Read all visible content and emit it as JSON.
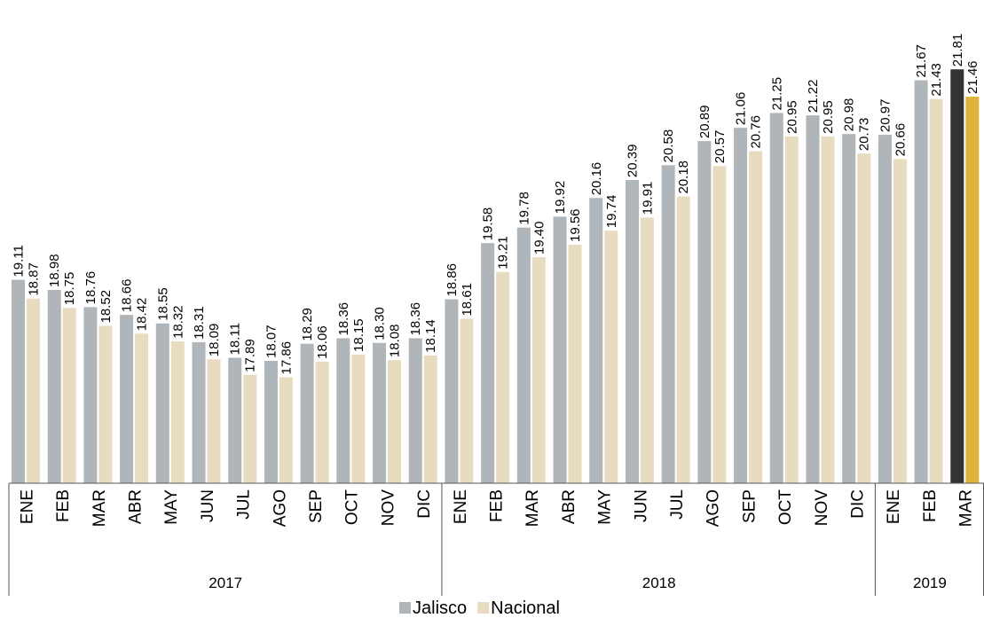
{
  "chart_data": {
    "type": "bar",
    "categories": [
      "ENE",
      "FEB",
      "MAR",
      "ABR",
      "MAY",
      "JUN",
      "JUL",
      "AGO",
      "SEP",
      "OCT",
      "NOV",
      "DIC",
      "ENE",
      "FEB",
      "MAR",
      "ABR",
      "MAY",
      "JUN",
      "JUL",
      "AGO",
      "SEP",
      "OCT",
      "NOV",
      "DIC",
      "ENE",
      "FEB",
      "MAR"
    ],
    "groups": [
      {
        "label": "2017",
        "span": 12
      },
      {
        "label": "2018",
        "span": 12
      },
      {
        "label": "2019",
        "span": 3
      }
    ],
    "series": [
      {
        "name": "Jalisco",
        "color": "#b0b5ba",
        "colors": [
          "#b0b5ba",
          "#b0b5ba",
          "#b0b5ba",
          "#b0b5ba",
          "#b0b5ba",
          "#b0b5ba",
          "#b0b5ba",
          "#b0b5ba",
          "#b0b5ba",
          "#b0b5ba",
          "#b0b5ba",
          "#b0b5ba",
          "#b0b5ba",
          "#b0b5ba",
          "#b0b5ba",
          "#b0b5ba",
          "#b0b5ba",
          "#b0b5ba",
          "#b0b5ba",
          "#b0b5ba",
          "#b0b5ba",
          "#b0b5ba",
          "#b0b5ba",
          "#b0b5ba",
          "#b0b5ba",
          "#b0b5ba",
          "#333333"
        ],
        "values": [
          19.11,
          18.98,
          18.76,
          18.66,
          18.55,
          18.31,
          18.11,
          18.07,
          18.29,
          18.36,
          18.3,
          18.36,
          18.86,
          19.58,
          19.78,
          19.92,
          20.16,
          20.39,
          20.58,
          20.89,
          21.06,
          21.25,
          21.22,
          20.98,
          20.97,
          21.67,
          21.81
        ],
        "value_labels": [
          "19.11",
          "18.98",
          "18.76",
          "18.66",
          "18.55",
          "18.31",
          "18.11",
          "18.07",
          "18.29",
          "18.36",
          "18.30",
          "18.36",
          "18.86",
          "19.58",
          "19.78",
          "19.92",
          "20.16",
          "20.39",
          "20.58",
          "20.89",
          "21.06",
          "21.25",
          "21.22",
          "20.98",
          "20.97",
          "21.67",
          "21.81"
        ]
      },
      {
        "name": "Nacional",
        "color": "#e8dcc0",
        "colors": [
          "#e8dcc0",
          "#e8dcc0",
          "#e8dcc0",
          "#e8dcc0",
          "#e8dcc0",
          "#e8dcc0",
          "#e8dcc0",
          "#e8dcc0",
          "#e8dcc0",
          "#e8dcc0",
          "#e8dcc0",
          "#e8dcc0",
          "#e8dcc0",
          "#e8dcc0",
          "#e8dcc0",
          "#e8dcc0",
          "#e8dcc0",
          "#e8dcc0",
          "#e8dcc0",
          "#e8dcc0",
          "#e8dcc0",
          "#e8dcc0",
          "#e8dcc0",
          "#e8dcc0",
          "#e8dcc0",
          "#e8dcc0",
          "#e0b43c"
        ],
        "values": [
          18.87,
          18.75,
          18.52,
          18.42,
          18.32,
          18.09,
          17.89,
          17.86,
          18.06,
          18.15,
          18.08,
          18.14,
          18.61,
          19.21,
          19.4,
          19.56,
          19.74,
          19.91,
          20.18,
          20.57,
          20.76,
          20.95,
          20.95,
          20.73,
          20.66,
          21.43,
          21.46
        ],
        "value_labels": [
          "18.87",
          "18.75",
          "18.52",
          "18.42",
          "18.32",
          "18.09",
          "17.89",
          "17.86",
          "18.06",
          "18.15",
          "18.08",
          "18.14",
          "18.61",
          "19.21",
          "19.40",
          "19.56",
          "19.74",
          "19.91",
          "20.18",
          "20.57",
          "20.76",
          "20.95",
          "20.95",
          "20.73",
          "20.66",
          "21.43",
          "21.46"
        ]
      }
    ],
    "ylim": [
      16.5,
      22.7
    ]
  }
}
